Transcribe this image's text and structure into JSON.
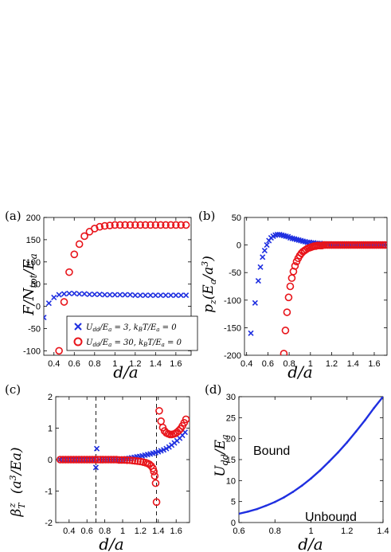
{
  "colors": {
    "blue": "#1f2fe0",
    "red": "#e8141a",
    "axis": "#000000"
  },
  "chart_data": [
    {
      "id": "a",
      "type": "scatter",
      "panel_label": "(a)",
      "xlabel": "d/a",
      "ylabel": "F/N_tot/E_a",
      "xlim": [
        0.3,
        1.75
      ],
      "ylim": [
        -110,
        200
      ],
      "xticks": [
        "0.4",
        "0.6",
        "0.8",
        "1",
        "1.2",
        "1.4",
        "1.6"
      ],
      "xtick_values": [
        0.4,
        0.6,
        0.8,
        1.0,
        1.2,
        1.4,
        1.6
      ],
      "yticks": [
        "-100",
        "-50",
        "0",
        "50",
        "100",
        "150",
        "200"
      ],
      "ytick_values": [
        -100,
        -50,
        0,
        50,
        100,
        150,
        200
      ],
      "legend_position": "lower-right",
      "series": [
        {
          "name": "U_dd/E_a = 3, k_BT/E_a = 0",
          "marker": "x",
          "color": "#1f2fe0",
          "x": [
            0.3,
            0.35,
            0.4,
            0.45,
            0.5,
            0.55,
            0.6,
            0.65,
            0.7,
            0.75,
            0.8,
            0.85,
            0.9,
            0.95,
            1.0,
            1.05,
            1.1,
            1.15,
            1.2,
            1.25,
            1.3,
            1.35,
            1.4,
            1.45,
            1.5,
            1.55,
            1.6,
            1.65,
            1.7
          ],
          "y": [
            -25,
            7,
            20,
            26,
            28,
            29,
            29,
            28,
            28,
            27,
            27,
            27,
            26,
            26,
            26,
            26,
            26,
            26,
            25,
            25,
            25,
            25,
            25,
            25,
            25,
            25,
            25,
            25,
            25
          ]
        },
        {
          "name": "U_dd/E_a = 30, k_BT/E_a = 0",
          "marker": "o",
          "color": "#e8141a",
          "x": [
            0.45,
            0.5,
            0.55,
            0.6,
            0.65,
            0.7,
            0.75,
            0.8,
            0.85,
            0.9,
            0.95,
            1.0,
            1.05,
            1.1,
            1.15,
            1.2,
            1.25,
            1.3,
            1.35,
            1.4,
            1.45,
            1.5,
            1.55,
            1.6,
            1.65,
            1.7
          ],
          "y": [
            -100,
            10,
            77,
            117,
            140,
            158,
            168,
            175,
            179,
            181,
            182,
            183,
            183,
            183,
            183,
            183,
            183,
            183,
            183,
            183,
            183,
            183,
            183,
            183,
            183,
            183
          ]
        }
      ]
    },
    {
      "id": "b",
      "type": "scatter",
      "panel_label": "(b)",
      "xlabel": "d/a",
      "ylabel": "p_z(E_a/a^3)",
      "xlim": [
        0.38,
        1.72
      ],
      "ylim": [
        -200,
        50
      ],
      "xticks": [
        "0.4",
        "0.6",
        "0.8",
        "1",
        "1.2",
        "1.4",
        "1.6"
      ],
      "xtick_values": [
        0.4,
        0.6,
        0.8,
        1.0,
        1.2,
        1.4,
        1.6
      ],
      "yticks": [
        "-200",
        "-150",
        "-100",
        "-50",
        "0",
        "50"
      ],
      "ytick_values": [
        -200,
        -150,
        -100,
        -50,
        0,
        50
      ],
      "series": [
        {
          "name": "U_dd/E_a = 3, k_BT/E_a = 0",
          "marker": "x",
          "color": "#1f2fe0",
          "x": [
            0.44,
            0.48,
            0.51,
            0.53,
            0.55,
            0.57,
            0.59,
            0.61,
            0.63,
            0.65,
            0.67,
            0.69,
            0.71,
            0.73,
            0.75,
            0.77,
            0.79,
            0.81,
            0.83,
            0.85,
            0.87,
            0.89,
            0.91,
            0.93,
            0.95,
            0.97,
            0.99,
            1.01,
            1.03,
            1.05,
            1.07,
            1.09,
            1.11,
            1.13,
            1.15,
            1.17,
            1.19,
            1.21,
            1.23,
            1.25,
            1.27,
            1.29,
            1.31,
            1.33,
            1.35,
            1.37,
            1.39,
            1.41,
            1.43,
            1.45,
            1.47,
            1.49,
            1.51,
            1.53,
            1.55,
            1.57,
            1.59,
            1.61,
            1.63,
            1.65,
            1.67,
            1.69
          ],
          "y": [
            -160,
            -105,
            -65,
            -40,
            -22,
            -10,
            0,
            8,
            13,
            16,
            18,
            19,
            19,
            18,
            17,
            16,
            15,
            13,
            12,
            11,
            10,
            9,
            8,
            7,
            6,
            5,
            5,
            4,
            4,
            3,
            3,
            3,
            2,
            2,
            2,
            2,
            1,
            1,
            1,
            1,
            1,
            1,
            1,
            1,
            0,
            0,
            0,
            0,
            0,
            0,
            0,
            0,
            0,
            0,
            0,
            0,
            0,
            0,
            0,
            0,
            0,
            0
          ]
        },
        {
          "name": "U_dd/E_a = 30, k_BT/E_a = 0",
          "marker": "o",
          "color": "#e8141a",
          "x": [
            0.75,
            0.765,
            0.78,
            0.795,
            0.81,
            0.825,
            0.84,
            0.855,
            0.87,
            0.885,
            0.9,
            0.915,
            0.93,
            0.945,
            0.96,
            0.975,
            0.99,
            1.005,
            1.02,
            1.035,
            1.05,
            1.065,
            1.08,
            1.095,
            1.11,
            1.125,
            1.14,
            1.16,
            1.18,
            1.2,
            1.22,
            1.24,
            1.26,
            1.28,
            1.3,
            1.32,
            1.34,
            1.36,
            1.38,
            1.4,
            1.42,
            1.44,
            1.46,
            1.48,
            1.5,
            1.52,
            1.54,
            1.56,
            1.58,
            1.6,
            1.62,
            1.64,
            1.66,
            1.68,
            1.7
          ],
          "y": [
            -197,
            -155,
            -122,
            -95,
            -75,
            -60,
            -48,
            -38,
            -30,
            -24,
            -19,
            -15,
            -12,
            -10,
            -8,
            -6,
            -5,
            -4,
            -3,
            -2,
            -2,
            -1,
            -1,
            -1,
            -1,
            0,
            0,
            0,
            0,
            0,
            0,
            0,
            0,
            0,
            0,
            0,
            0,
            0,
            0,
            0,
            0,
            0,
            0,
            0,
            0,
            0,
            0,
            0,
            0,
            0,
            0,
            0,
            0,
            0,
            0
          ]
        }
      ]
    },
    {
      "id": "c",
      "type": "scatter",
      "panel_label": "(c)",
      "xlabel": "d/a",
      "ylabel": "β_T^z (a^3/E_a)",
      "xlim": [
        0.25,
        1.75
      ],
      "ylim": [
        -2,
        2
      ],
      "xticks": [
        "0.4",
        "0.6",
        "0.8",
        "1",
        "1.2",
        "1.4",
        "1.6"
      ],
      "xtick_values": [
        0.4,
        0.6,
        0.8,
        1.0,
        1.2,
        1.4,
        1.6
      ],
      "yticks": [
        "-2",
        "-1",
        "0",
        "1",
        "2"
      ],
      "ytick_values": [
        -2,
        -1,
        0,
        1,
        2
      ],
      "vlines": [
        0.7,
        1.38
      ],
      "series": [
        {
          "name": "U_dd/E_a = 3, k_BT/E_a = 0",
          "marker": "x",
          "color": "#1f2fe0",
          "x": [
            0.3,
            0.33,
            0.36,
            0.39,
            0.42,
            0.45,
            0.48,
            0.51,
            0.54,
            0.57,
            0.6,
            0.63,
            0.66,
            0.69,
            0.7,
            0.71,
            0.74,
            0.77,
            0.8,
            0.83,
            0.86,
            0.89,
            0.92,
            0.95,
            0.98,
            1.01,
            1.04,
            1.07,
            1.1,
            1.13,
            1.16,
            1.19,
            1.22,
            1.25,
            1.28,
            1.31,
            1.34,
            1.37,
            1.4,
            1.43,
            1.46,
            1.49,
            1.52,
            1.55,
            1.58,
            1.61,
            1.64,
            1.67,
            1.7
          ],
          "y": [
            0,
            0,
            0,
            0,
            0,
            0,
            0,
            0,
            0,
            0,
            0,
            0,
            0,
            0.02,
            -0.25,
            0.35,
            0,
            0,
            0,
            0,
            0,
            0,
            0,
            0,
            0.01,
            0.02,
            0.03,
            0.04,
            0.06,
            0.07,
            0.09,
            0.1,
            0.12,
            0.14,
            0.16,
            0.18,
            0.2,
            0.22,
            0.25,
            0.28,
            0.31,
            0.35,
            0.4,
            0.46,
            0.53,
            0.6,
            0.68,
            0.77,
            0.87
          ]
        },
        {
          "name": "U_dd/E_a = 30, k_BT/E_a = 0",
          "marker": "o",
          "color": "#e8141a",
          "x": [
            0.3,
            0.33,
            0.36,
            0.39,
            0.42,
            0.45,
            0.48,
            0.51,
            0.54,
            0.57,
            0.6,
            0.63,
            0.66,
            0.69,
            0.72,
            0.75,
            0.78,
            0.81,
            0.84,
            0.87,
            0.9,
            0.93,
            0.96,
            0.99,
            1.02,
            1.05,
            1.08,
            1.11,
            1.14,
            1.17,
            1.2,
            1.23,
            1.26,
            1.28,
            1.3,
            1.32,
            1.34,
            1.35,
            1.36,
            1.37,
            1.38,
            1.41,
            1.43,
            1.45,
            1.47,
            1.49,
            1.51,
            1.53,
            1.55,
            1.57,
            1.59,
            1.61,
            1.63,
            1.65,
            1.67,
            1.69,
            1.71
          ],
          "y": [
            0,
            0,
            0,
            0,
            0,
            0,
            0,
            0,
            0,
            0,
            0,
            0,
            0,
            0,
            0,
            0,
            0,
            0,
            0,
            0,
            0,
            0,
            -0.01,
            -0.01,
            -0.01,
            -0.02,
            -0.02,
            -0.03,
            -0.04,
            -0.05,
            -0.06,
            -0.08,
            -0.1,
            -0.12,
            -0.15,
            -0.2,
            -0.28,
            -0.38,
            -0.52,
            -0.75,
            -1.35,
            1.55,
            1.22,
            1.02,
            0.91,
            0.85,
            0.82,
            0.8,
            0.8,
            0.81,
            0.83,
            0.87,
            0.92,
            0.98,
            1.07,
            1.17,
            1.28
          ]
        }
      ]
    },
    {
      "id": "d",
      "type": "line",
      "panel_label": "(d)",
      "xlabel": "d/a",
      "ylabel": "U_dd/E_a",
      "xlim": [
        0.6,
        1.4
      ],
      "ylim": [
        0,
        30
      ],
      "xticks": [
        "0.6",
        "0.8",
        "1",
        "1.2",
        "1.4"
      ],
      "xtick_values": [
        0.6,
        0.8,
        1.0,
        1.2,
        1.4
      ],
      "yticks": [
        "0",
        "5",
        "10",
        "15",
        "20",
        "25",
        "30"
      ],
      "ytick_values": [
        0,
        5,
        10,
        15,
        20,
        25,
        30
      ],
      "annotations": [
        "Bound",
        "Unbound"
      ],
      "series": [
        {
          "color": "#1f2fe0",
          "x": [
            0.6,
            0.65,
            0.7,
            0.75,
            0.8,
            0.85,
            0.9,
            0.95,
            1.0,
            1.05,
            1.1,
            1.15,
            1.2,
            1.25,
            1.3,
            1.35,
            1.4
          ],
          "y": [
            2.1,
            2.6,
            3.2,
            4.0,
            4.9,
            6.0,
            7.3,
            8.8,
            10.5,
            12.4,
            14.5,
            16.7,
            19.1,
            21.7,
            24.4,
            27.3,
            30.0
          ]
        }
      ]
    }
  ]
}
